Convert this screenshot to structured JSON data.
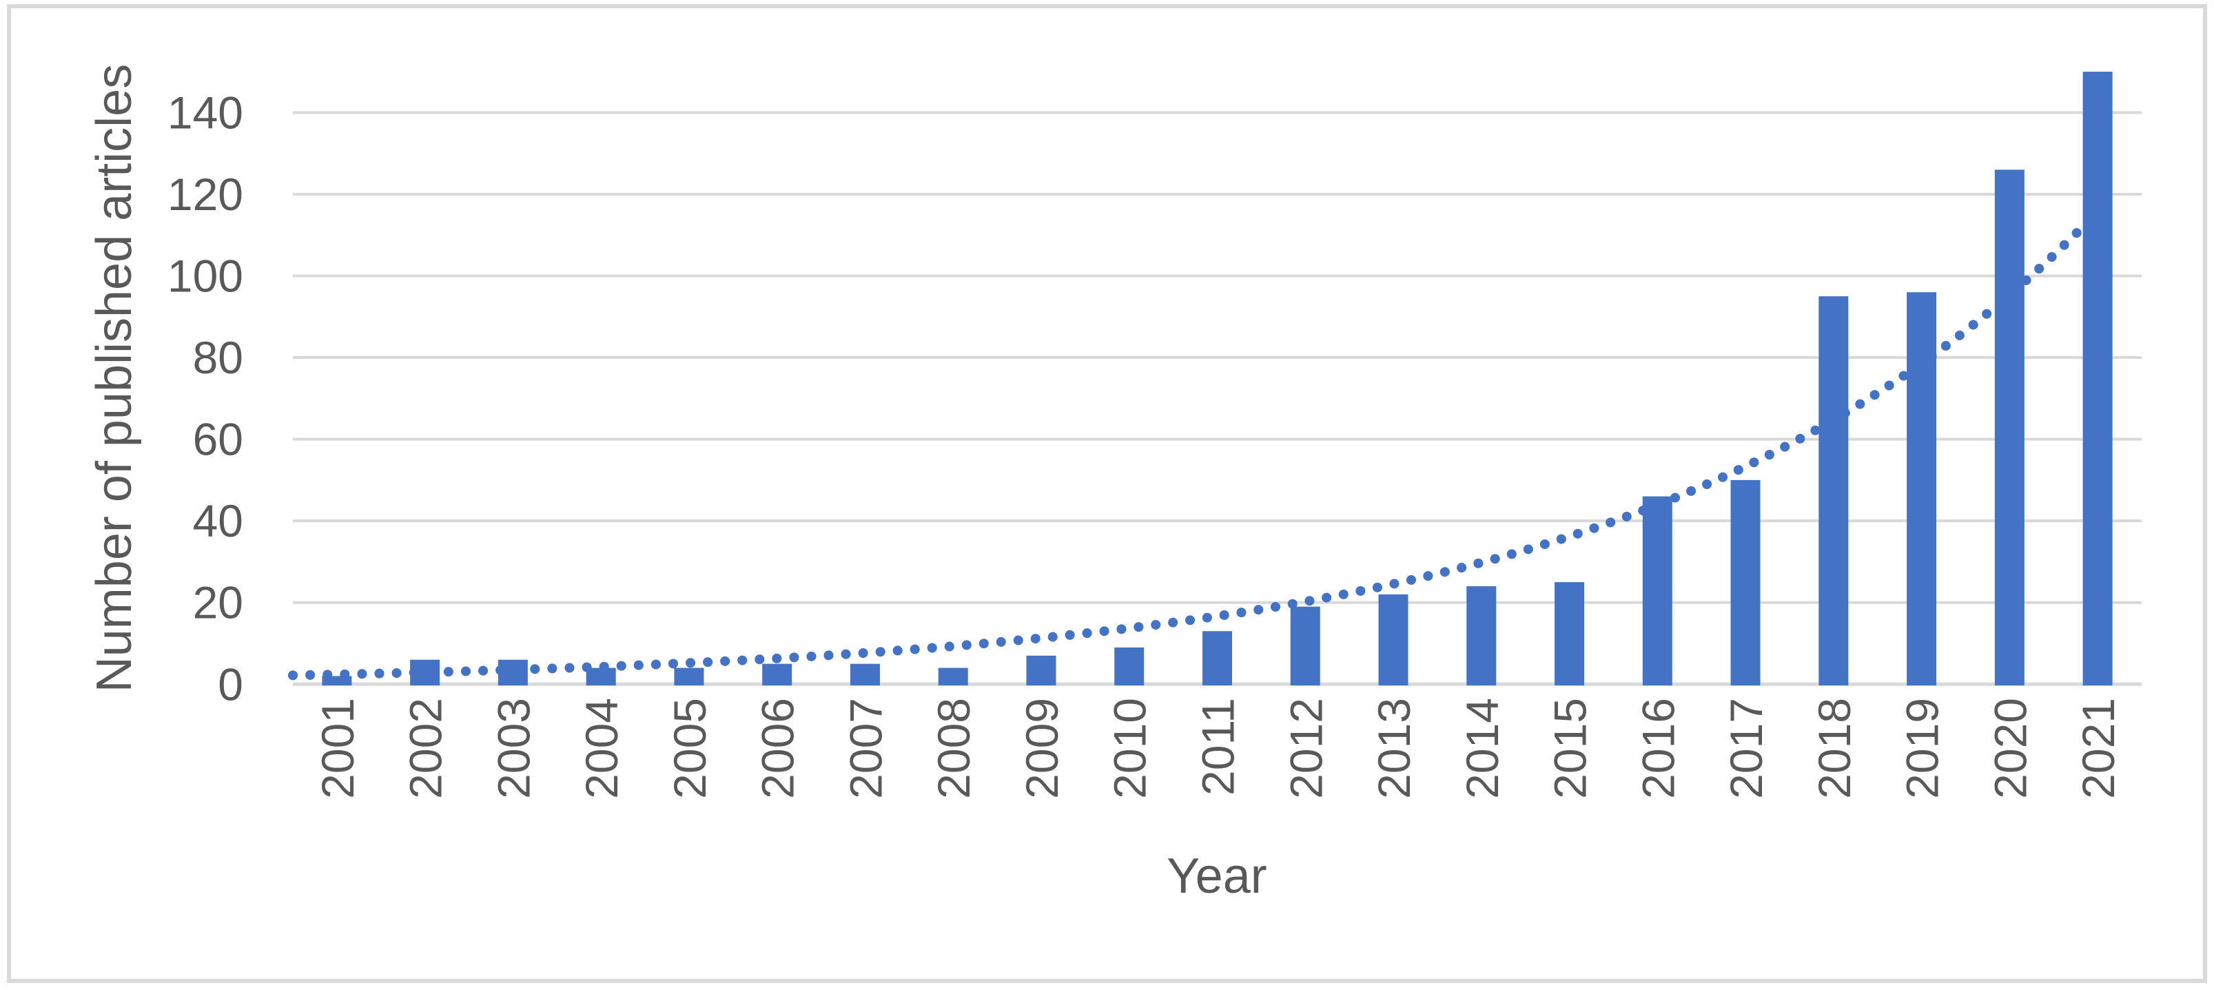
{
  "figure": {
    "background_color": "#FFFFFF",
    "border_color": "#D9D9D9"
  },
  "chart_data": {
    "type": "bar",
    "title": "",
    "xlabel": "Year",
    "ylabel": "Number of published articles",
    "categories": [
      "2001",
      "2002",
      "2003",
      "2004",
      "2005",
      "2006",
      "2007",
      "2008",
      "2009",
      "2010",
      "2011",
      "2012",
      "2013",
      "2014",
      "2015",
      "2016",
      "2017",
      "2018",
      "2019",
      "2020",
      "2021"
    ],
    "values": [
      2,
      6,
      6,
      4,
      4,
      5,
      5,
      4,
      7,
      9,
      13,
      19,
      22,
      24,
      25,
      46,
      50,
      95,
      96,
      126,
      150
    ],
    "ylim": [
      0,
      150
    ],
    "yticks": [
      0,
      20,
      40,
      60,
      80,
      100,
      120,
      140
    ],
    "grid": true,
    "legend": false,
    "bar_color": "#4472C4",
    "gridline_color": "#D9D9D9",
    "axis_line_color": "#D9D9D9",
    "tick_label_color": "#595959",
    "axis_title_color": "#595959",
    "trendline": {
      "type": "exponential",
      "style": "dotted",
      "color": "#4472C4",
      "coefficient": 2.4,
      "rate": 0.1938,
      "start_period_offset": -0.5,
      "end_period_offset": 20,
      "start_value": 2.2,
      "end_value": 116
    }
  }
}
